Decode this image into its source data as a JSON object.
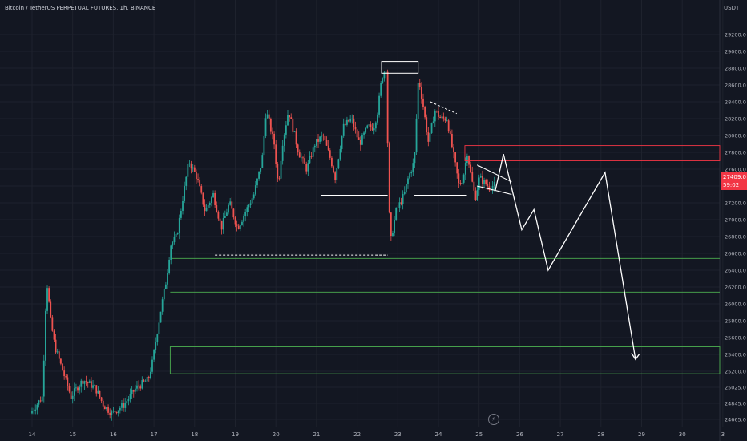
{
  "header": {
    "symbol_title": "Bitcoin / TetherUS PERPETUAL FUTURES, 1h, BINANCE",
    "currency": "USDT"
  },
  "price_tag": {
    "price": "27409.0",
    "countdown": "59:02"
  },
  "colors": {
    "background": "#131722",
    "up": "#26a69a",
    "down": "#ef5350",
    "zone_green": "#4caf50",
    "zone_red": "#f23645",
    "drawing": "#ffffff",
    "axis_text": "#b2b5be"
  },
  "icons": {
    "replay": "lightning-icon"
  },
  "chart_data": {
    "type": "candlestick",
    "title": "",
    "xlabel": "",
    "ylabel": "",
    "ylim": [
      24560,
      29400
    ],
    "grid": true,
    "y_ticks": [
      "29200.0",
      "29000.0",
      "28800.0",
      "28600.0",
      "28400.0",
      "28200.0",
      "28000.0",
      "27800.0",
      "27600.0",
      "27400.0",
      "27200.0",
      "27000.0",
      "26800.0",
      "26600.0",
      "26400.0",
      "26200.0",
      "26000.0",
      "25800.0",
      "25600.0",
      "25400.0",
      "25200.0",
      "25025.0",
      "24845.0",
      "24665.0"
    ],
    "x_ticks": [
      "14",
      "15",
      "16",
      "17",
      "18",
      "19",
      "20",
      "21",
      "22",
      "23",
      "24",
      "25",
      "26",
      "27",
      "28",
      "29",
      "30",
      "3"
    ],
    "candle_day_range": [
      14,
      25.4
    ],
    "price_path": [
      [
        14.0,
        24700
      ],
      [
        14.3,
        24900
      ],
      [
        14.4,
        26300
      ],
      [
        14.5,
        25800
      ],
      [
        14.6,
        25500
      ],
      [
        14.8,
        25200
      ],
      [
        15.0,
        24900
      ],
      [
        15.3,
        25100
      ],
      [
        15.6,
        25000
      ],
      [
        15.8,
        24800
      ],
      [
        16.0,
        24700
      ],
      [
        16.3,
        24800
      ],
      [
        16.6,
        25000
      ],
      [
        16.9,
        25100
      ],
      [
        17.0,
        25300
      ],
      [
        17.2,
        25900
      ],
      [
        17.35,
        26300
      ],
      [
        17.45,
        26700
      ],
      [
        17.6,
        26800
      ],
      [
        17.8,
        27400
      ],
      [
        17.9,
        27700
      ],
      [
        18.1,
        27500
      ],
      [
        18.3,
        27100
      ],
      [
        18.5,
        27300
      ],
      [
        18.7,
        26900
      ],
      [
        18.9,
        27200
      ],
      [
        19.1,
        26900
      ],
      [
        19.3,
        27100
      ],
      [
        19.5,
        27300
      ],
      [
        19.7,
        27700
      ],
      [
        19.8,
        28300
      ],
      [
        20.0,
        27900
      ],
      [
        20.1,
        27400
      ],
      [
        20.2,
        27900
      ],
      [
        20.35,
        28300
      ],
      [
        20.5,
        28000
      ],
      [
        20.6,
        27800
      ],
      [
        20.8,
        27600
      ],
      [
        21.0,
        27900
      ],
      [
        21.2,
        28000
      ],
      [
        21.4,
        27700
      ],
      [
        21.5,
        27500
      ],
      [
        21.7,
        28100
      ],
      [
        21.9,
        28200
      ],
      [
        22.1,
        27900
      ],
      [
        22.3,
        28100
      ],
      [
        22.45,
        28100
      ],
      [
        22.55,
        28300
      ],
      [
        22.65,
        28700
      ],
      [
        22.75,
        28800
      ],
      [
        22.85,
        26700
      ],
      [
        23.0,
        27100
      ],
      [
        23.2,
        27300
      ],
      [
        23.3,
        27500
      ],
      [
        23.45,
        27700
      ],
      [
        23.55,
        28700
      ],
      [
        23.65,
        28400
      ],
      [
        23.8,
        27900
      ],
      [
        23.95,
        28300
      ],
      [
        24.1,
        28200
      ],
      [
        24.25,
        28200
      ],
      [
        24.4,
        27800
      ],
      [
        24.55,
        27400
      ],
      [
        24.65,
        27500
      ],
      [
        24.75,
        27800
      ],
      [
        24.85,
        27500
      ],
      [
        24.95,
        27250
      ],
      [
        25.05,
        27500
      ],
      [
        25.15,
        27450
      ],
      [
        25.3,
        27380
      ],
      [
        25.4,
        27409
      ]
    ],
    "zones": [
      {
        "type": "resistance",
        "color": "red",
        "x_start": 24.65,
        "y_top": 27880,
        "y_bottom": 27700
      },
      {
        "type": "support",
        "color": "green",
        "x_start": 17.45,
        "y": 26540
      },
      {
        "type": "support",
        "color": "green",
        "x_start": 17.4,
        "y": 26140
      },
      {
        "type": "support",
        "color": "green",
        "x_start": 17.4,
        "y_top": 25490,
        "y_bottom": 25170
      }
    ],
    "drawings": {
      "projection_path": [
        [
          25.4,
          27350
        ],
        [
          25.6,
          27780
        ],
        [
          26.05,
          26880
        ],
        [
          26.35,
          27120
        ],
        [
          26.7,
          26400
        ],
        [
          28.1,
          27560
        ],
        [
          28.85,
          25340
        ]
      ],
      "breakout_box": {
        "x": [
          22.6,
          23.5
        ],
        "y": [
          28740,
          28880
        ]
      },
      "support_line_1": {
        "x": [
          21.1,
          22.75
        ],
        "y": 27290
      },
      "support_line_2": {
        "x": [
          23.4,
          24.7
        ],
        "y": 27290
      },
      "dashed_low": {
        "x": [
          18.5,
          22.75
        ],
        "y": 26580
      },
      "dashed_top": {
        "x": [
          23.8,
          24.45
        ],
        "y": [
          28400,
          28260
        ]
      },
      "wedge": {
        "x": [
          24.95,
          25.8
        ],
        "upper": [
          27650,
          27450
        ],
        "lower": [
          27400,
          27300
        ]
      }
    }
  }
}
